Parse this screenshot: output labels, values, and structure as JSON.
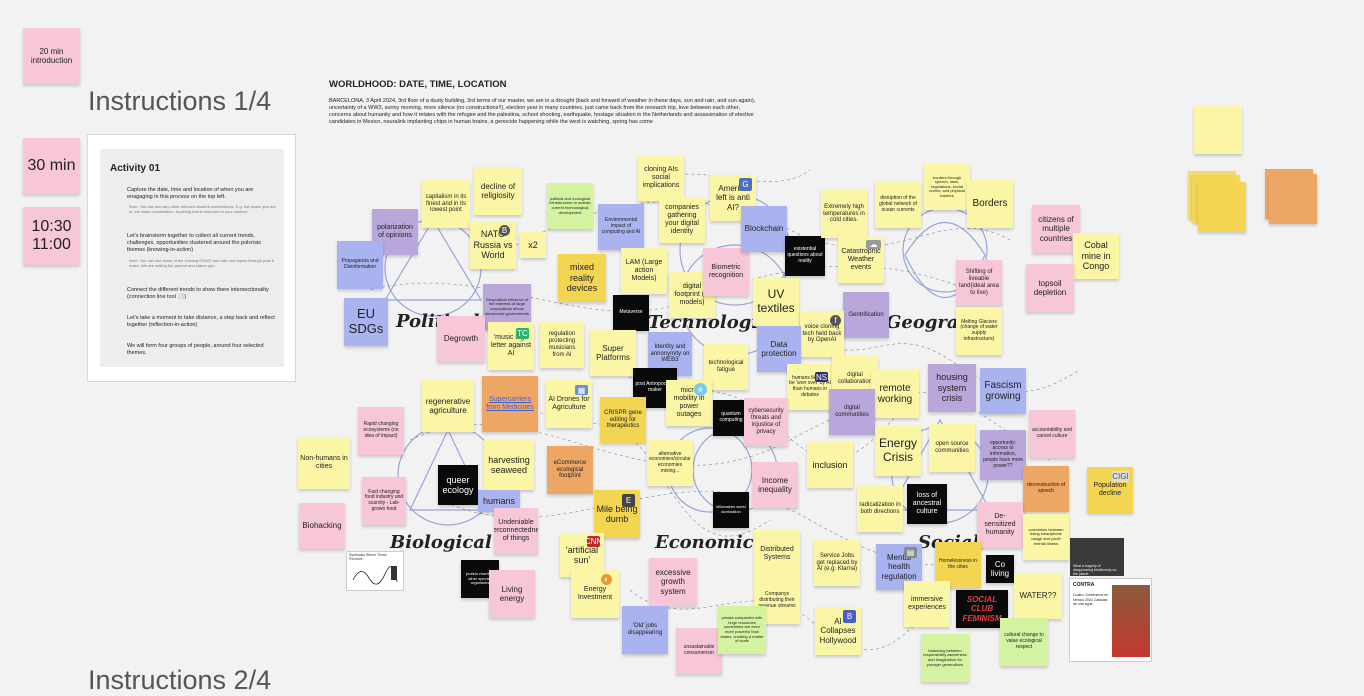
{
  "left": {
    "badge_intro": "20 min introduction",
    "badge_time": "30 min",
    "badge_slot": "10:30 11:00",
    "heading1": "Instructions 1/4",
    "heading2": "Instructions 2/4",
    "activity": {
      "title": "Activity 01",
      "p1": "Capture the date, time and location of when you are enagaging in this process on the top left.",
      "p1_note": "Note. You can add any other relevant situated worldedness. E.g. the space you are in, the class constellation. Anything that is relevant for your context.",
      "p2": "Let's brainstorm together to collect all current trends, challenges, opportunities clustered around the polcrisis themes (knowing-in-action)",
      "p2_note": "Note. You can use some of the existing ROWS and add new topics through post it notes. We are setting the ground and status quo.",
      "p3": "Connect the different trends to show there intersectionality (connection line tool ⬜)",
      "p4": "Let's take a moment to take distance, a step back and reflect together (reflection-in-action)",
      "p5": "We will form four groups of people, around four selected themes."
    }
  },
  "header": {
    "title": "WORLDHOOD: DATE, TIME, LOCATION",
    "body": "BARCELONA, 3 April 2024, 3rd floor of a dusty building, 3rd terms of our master, we are in a drought (back and forward of weather in these days, sun and rain, and sun again), uncertainty of a WW3, sunny morning, more silence (no constructions!!), election year in many countries, just came back from the research trip, love between each other, concerns about humanity and how it relates with the refugee and the palestina, school shooting, earthquake, hostage situation in the Netherlands and assassination of elective candidates in Mexico, neuralink implanting chips in human brains, a genocide happening while the west is watching, spring has come"
  },
  "categories": {
    "political": "Political",
    "technological": "Technological",
    "geographic": "Geograp",
    "biological": "Biological",
    "economic": "Economic",
    "social": "Social"
  },
  "notes": [
    "polarization of opinions",
    "capitalism in its finest and in its lowest point",
    "decline of religiosity",
    "political and ecological infrastructure to sustain current technological development",
    "NATO Russia vs World",
    "x2",
    "Propaganda and Disinformation",
    "EU SDGs",
    "Geopolitical influence of the interests of large corporations above democratic governments",
    "Degrowth",
    "'music sign letter against AI",
    "regulation protecting musicians from AI",
    "cloning AIs social implications",
    "America left is anti AI?",
    "Environmental impact of computing and AI",
    "companies gathering your digital identity",
    "mixed reality devices",
    "LAM (Large action Models)",
    "Metaverse",
    "digital footprint (ai models)",
    "Biometric recognition",
    "Blockchain",
    "existential questions about reality",
    "UV textiles",
    "Extremely high temperatures in cold cities.",
    "disruption of the global network of ocean currents",
    "borders through speech, laws, regulations, social norms, and physical barriers",
    "Borders",
    "Catastrophic Weather events",
    "citizens of multiple countries",
    "Cobal mine in Congo",
    "topsoil depletion",
    "Shifting of liveable land(ideal area to live)",
    "Melting Glaciers (change of water supply infrastructure)",
    "Gentrification",
    "voice cloning tech held back by OpenAI",
    "Super Platforms",
    "Identity and annonymity on WEB3",
    "Data protection",
    "technological fatigue",
    "regenerative agriculture",
    "Supercarriers from Medicines",
    "AI Drones for Agriculture",
    "post Antropocene maker",
    "micro mobility in power outages",
    "humans likely to be 'won over' by AI than humans in debates",
    "digital collaboration",
    "remote working",
    "housing system crisis",
    "Fascism growing",
    "Rapid changing ecosystems (no idea of impact)",
    "CRISPR gene editing for therapeutics",
    "quantum computing",
    "cybersecurity threats and injustice of privacy",
    "digital communities",
    "accountability and cancel culture",
    "Non-humans in cities",
    "harvesting seaweed",
    "eCommerce ecological footprint",
    "alternative economies/circular economies mixing...",
    "Income inequality",
    "inclusion",
    "Energy Crisis",
    "open source communities",
    "opportunity: access to information, people have more power??",
    "Fast changing food industry and scarcity - Lab-grown food",
    "queer ecology",
    "humans",
    "Mile being dumb",
    "billionaires world domination",
    "radicalization in both directions",
    "loss of ancestral culture",
    "deconstruction of speech",
    "Population decline",
    "Biohacking",
    "Undeniable interconnectedness of things",
    "'artificial sun'",
    "Distributed Systems",
    "Service Jobs get replaced by AI (e.g. Klarna)",
    "Mental health regulation",
    "De-sensitized humanity",
    "correlation between rising smartphone usage and youth mental illness",
    "Homelessness in the cities",
    "Co living",
    "protein rewriting other species organisms",
    "Living energy",
    "excessive growth system",
    "Energy Investment",
    "Companys distributing their revenue streams",
    "immersive experiences",
    "SOCIAL CLUB FEMINISM",
    "WATER??",
    "'Old' jobs disappearing",
    "unsustainable consumerism",
    "private companies with huge resources sometimes are even more powerful than states, creating a matter of scale",
    "AI Collapses Hollywood",
    "balancing between responsibility awareness and imagination for younger generations",
    "cultural change to value ecological respect"
  ],
  "extra": {
    "photo_caption": "What a tragedy of disappearing biodiversity on the planet",
    "news_headline": "Cuatro Colmeneros en México 2024 Calladas de una agua",
    "thumb_caption": "Symbiosis Where Those Perceive"
  },
  "colors": {
    "yellow": "#fbf6a5",
    "pink": "#f7c6d9",
    "violet": "#b9a6db",
    "blue": "#a9b3ef",
    "orange": "#eea665",
    "green": "#d3f3a0",
    "black": "#0a0a0a",
    "gold": "#f3d552"
  }
}
